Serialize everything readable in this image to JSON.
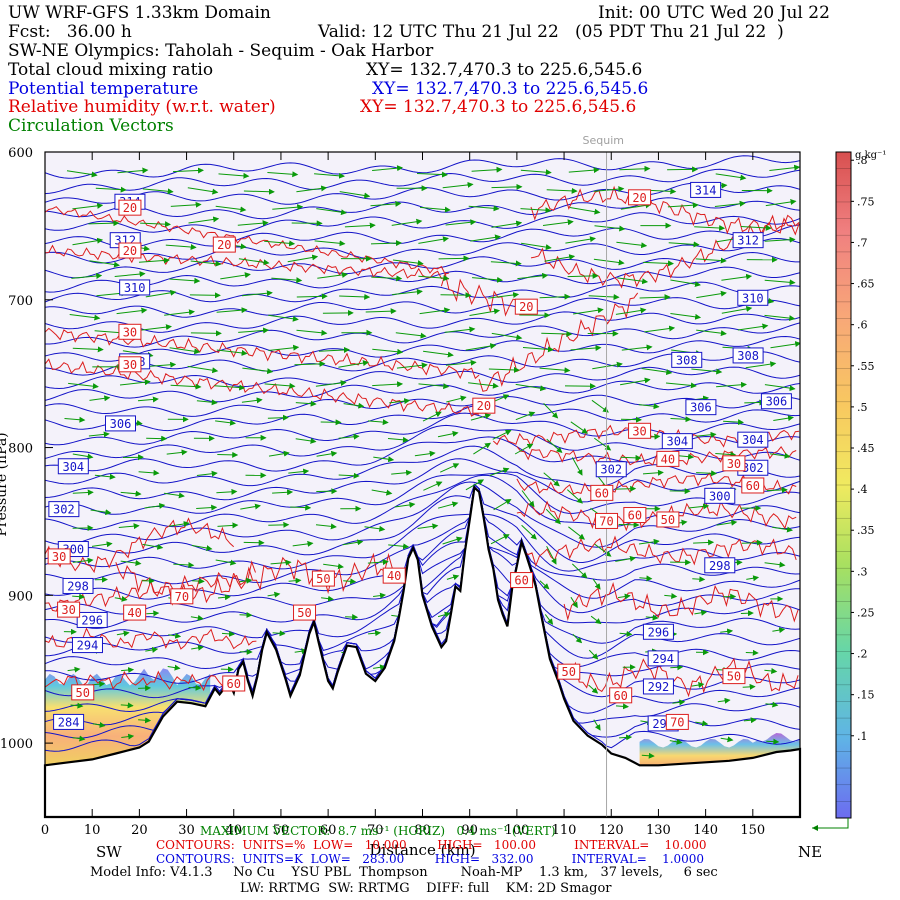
{
  "header": {
    "model": "UW WRF-GFS 1.33km Domain",
    "init": "Init: 00 UTC Wed 20 Jul 22",
    "fcst": "Fcst:   36.00 h",
    "valid": "Valid: 12 UTC Thu 21 Jul 22   (05 PDT Thu 21 Jul 22  )",
    "section": "SW-NE Olympics: Taholah - Sequim - Oak Harbor",
    "field1": "Total cloud mixing ratio",
    "field1_xy": "XY= 132.7,470.3 to 225.6,545.6",
    "field2": "Potential temperature",
    "field2_xy": "XY= 132.7,470.3 to 225.6,545.6",
    "field3": "Relative humidity (w.r.t. water)",
    "field3_xy": "XY= 132.7,470.3 to 225.6,545.6",
    "field4": "Circulation Vectors"
  },
  "chart_data": {
    "type": "cross-section",
    "xlabel": "Distance (km)",
    "ylabel": "Pressure (hPa)",
    "x_ticks": [
      0,
      10,
      20,
      30,
      40,
      50,
      60,
      70,
      80,
      90,
      100,
      110,
      120,
      130,
      140,
      150
    ],
    "y_ticks": [
      600,
      700,
      800,
      900,
      1000
    ],
    "xlim": [
      0,
      160
    ],
    "ylim": [
      1050,
      600
    ],
    "location_marker": {
      "label": "Sequim",
      "x": 119
    },
    "colorbar": {
      "unit": "g kg⁻¹",
      "ticks": [
        ".8",
        ".75",
        ".7",
        ".65",
        ".6",
        ".55",
        ".5",
        ".45",
        ".4",
        ".35",
        ".3",
        ".25",
        ".2",
        ".15",
        ".1"
      ],
      "values": [
        0.8,
        0.75,
        0.7,
        0.65,
        0.6,
        0.55,
        0.5,
        0.45,
        0.4,
        0.35,
        0.3,
        0.25,
        0.2,
        0.15,
        0.1
      ]
    },
    "terrain": [
      [
        0,
        1015
      ],
      [
        5,
        1013
      ],
      [
        10,
        1011
      ],
      [
        15,
        1007
      ],
      [
        20,
        1003
      ],
      [
        22,
        999
      ],
      [
        25,
        982
      ],
      [
        28,
        972
      ],
      [
        31,
        973
      ],
      [
        34,
        975
      ],
      [
        36,
        963
      ],
      [
        37,
        967
      ],
      [
        39,
        959
      ],
      [
        40,
        966
      ],
      [
        41,
        950
      ],
      [
        42,
        945
      ],
      [
        43,
        958
      ],
      [
        44,
        968
      ],
      [
        45,
        955
      ],
      [
        46,
        937
      ],
      [
        47,
        925
      ],
      [
        49,
        937
      ],
      [
        51,
        957
      ],
      [
        52,
        968
      ],
      [
        54,
        954
      ],
      [
        55,
        940
      ],
      [
        56,
        926
      ],
      [
        57,
        918
      ],
      [
        58,
        932
      ],
      [
        60,
        958
      ],
      [
        61,
        963
      ],
      [
        62,
        952
      ],
      [
        64,
        934
      ],
      [
        66,
        935
      ],
      [
        68,
        953
      ],
      [
        70,
        958
      ],
      [
        72,
        949
      ],
      [
        74,
        931
      ],
      [
        75,
        915
      ],
      [
        76,
        897
      ],
      [
        77,
        875
      ],
      [
        78,
        868
      ],
      [
        79,
        876
      ],
      [
        80,
        900
      ],
      [
        82,
        921
      ],
      [
        84,
        935
      ],
      [
        85,
        931
      ],
      [
        86,
        913
      ],
      [
        87,
        894
      ],
      [
        88,
        897
      ],
      [
        89,
        870
      ],
      [
        90,
        849
      ],
      [
        91,
        827
      ],
      [
        92,
        830
      ],
      [
        93,
        848
      ],
      [
        94,
        869
      ],
      [
        95,
        882
      ],
      [
        96,
        903
      ],
      [
        97,
        913
      ],
      [
        98,
        921
      ],
      [
        99,
        895
      ],
      [
        100,
        880
      ],
      [
        101,
        864
      ],
      [
        102,
        873
      ],
      [
        103,
        883
      ],
      [
        104,
        894
      ],
      [
        105,
        911
      ],
      [
        107,
        943
      ],
      [
        109,
        960
      ],
      [
        110,
        970
      ],
      [
        112,
        985
      ],
      [
        115,
        995
      ],
      [
        118,
        1001
      ],
      [
        120,
        1007
      ],
      [
        123,
        1010
      ],
      [
        126,
        1015
      ],
      [
        130,
        1015
      ],
      [
        135,
        1014
      ],
      [
        140,
        1013
      ],
      [
        145,
        1012
      ],
      [
        150,
        1010
      ],
      [
        155,
        1006
      ],
      [
        158,
        1005
      ],
      [
        160,
        1004
      ]
    ],
    "theta_labels": [
      {
        "value": 314,
        "x": 18,
        "p": 634
      },
      {
        "value": 314,
        "x": 140,
        "p": 626
      },
      {
        "value": 312,
        "x": 17,
        "p": 660
      },
      {
        "value": 312,
        "x": 149,
        "p": 660
      },
      {
        "value": 310,
        "x": 19,
        "p": 692
      },
      {
        "value": 310,
        "x": 150,
        "p": 699
      },
      {
        "value": 308,
        "x": 19,
        "p": 742
      },
      {
        "value": 308,
        "x": 136,
        "p": 741
      },
      {
        "value": 308,
        "x": 149,
        "p": 738
      },
      {
        "value": 306,
        "x": 16,
        "p": 784
      },
      {
        "value": 306,
        "x": 139,
        "p": 773
      },
      {
        "value": 306,
        "x": 155,
        "p": 769
      },
      {
        "value": 304,
        "x": 6,
        "p": 813
      },
      {
        "value": 304,
        "x": 134,
        "p": 796
      },
      {
        "value": 304,
        "x": 150,
        "p": 795
      },
      {
        "value": 302,
        "x": 4,
        "p": 842
      },
      {
        "value": 302,
        "x": 120,
        "p": 815
      },
      {
        "value": 302,
        "x": 150,
        "p": 814
      },
      {
        "value": 300,
        "x": 6,
        "p": 869
      },
      {
        "value": 300,
        "x": 143,
        "p": 833
      },
      {
        "value": 298,
        "x": 7,
        "p": 894
      },
      {
        "value": 298,
        "x": 143,
        "p": 880
      },
      {
        "value": 296,
        "x": 10,
        "p": 917
      },
      {
        "value": 296,
        "x": 130,
        "p": 925
      },
      {
        "value": 294,
        "x": 9,
        "p": 934
      },
      {
        "value": 294,
        "x": 131,
        "p": 943
      },
      {
        "value": 292,
        "x": 130,
        "p": 962
      },
      {
        "value": 290,
        "x": 131,
        "p": 987
      },
      {
        "value": 284,
        "x": 5,
        "p": 986
      }
    ],
    "rh_labels": [
      {
        "value": 20,
        "x": 18,
        "p": 638
      },
      {
        "value": 20,
        "x": 18,
        "p": 667
      },
      {
        "value": 20,
        "x": 38,
        "p": 663
      },
      {
        "value": 20,
        "x": 126,
        "p": 631
      },
      {
        "value": 20,
        "x": 102,
        "p": 705
      },
      {
        "value": 20,
        "x": 93,
        "p": 772
      },
      {
        "value": 30,
        "x": 18,
        "p": 722
      },
      {
        "value": 30,
        "x": 18,
        "p": 744
      },
      {
        "value": 30,
        "x": 126,
        "p": 789
      },
      {
        "value": 30,
        "x": 146,
        "p": 811
      },
      {
        "value": 30,
        "x": 3,
        "p": 874
      },
      {
        "value": 30,
        "x": 5,
        "p": 910
      },
      {
        "value": 40,
        "x": 132,
        "p": 808
      },
      {
        "value": 40,
        "x": 74,
        "p": 887
      },
      {
        "value": 40,
        "x": 19,
        "p": 912
      },
      {
        "value": 50,
        "x": 132,
        "p": 849
      },
      {
        "value": 50,
        "x": 59,
        "p": 889
      },
      {
        "value": 50,
        "x": 111,
        "p": 952
      },
      {
        "value": 50,
        "x": 146,
        "p": 955
      },
      {
        "value": 50,
        "x": 55,
        "p": 912
      },
      {
        "value": 50,
        "x": 8,
        "p": 966
      },
      {
        "value": 60,
        "x": 118,
        "p": 831
      },
      {
        "value": 60,
        "x": 125,
        "p": 846
      },
      {
        "value": 60,
        "x": 40,
        "p": 960
      },
      {
        "value": 60,
        "x": 122,
        "p": 968
      },
      {
        "value": 60,
        "x": 150,
        "p": 826
      },
      {
        "value": 60,
        "x": 101,
        "p": 890
      },
      {
        "value": 70,
        "x": 119,
        "p": 850
      },
      {
        "value": 70,
        "x": 29,
        "p": 901
      },
      {
        "value": 70,
        "x": 134,
        "p": 986
      }
    ]
  },
  "footer": {
    "sw": "SW",
    "ne": "NE",
    "max_vector": "MAXIMUM VECTOR:  8.7 ms⁻¹ (HORIZ)   0.4 ms⁻¹ (VERT)",
    "contours_rh": "CONTOURS:  UNITS=%  LOW=   10.000        HIGH=   100.00          INTERVAL=    10.000",
    "contours_theta": "CONTOURS:  UNITS=K  LOW=   283.00        HIGH=   332.00          INTERVAL=    1.0000",
    "model_info": "Model Info: V4.1.3     No Cu    YSU PBL  Thompson        Noah-MP    1.3 km,   37 levels,     6 sec",
    "model_info2": "LW: RRTMG  SW: RRTMG    DIFF: full    KM: 2D Smagor"
  },
  "colors": {
    "theta": "#1414c8",
    "rh": "#dc1e1e",
    "vectors": "#0a9a0a",
    "background": "#f4f2fa",
    "terrain_line": "#000000"
  }
}
